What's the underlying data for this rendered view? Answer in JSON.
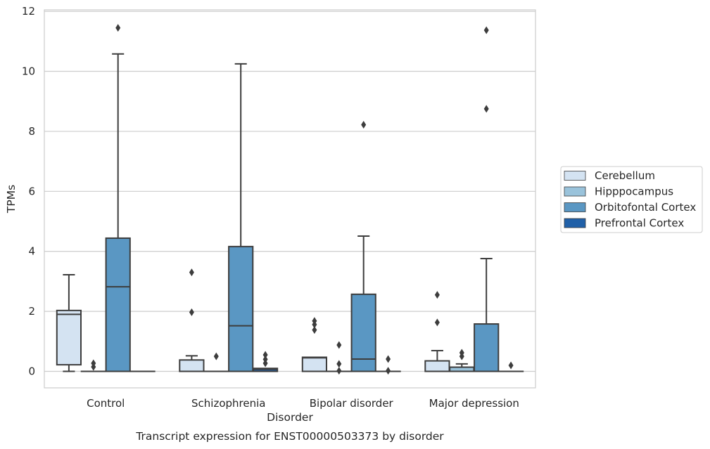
{
  "chart_data": {
    "type": "boxplot",
    "title": "",
    "caption": "Transcript expression for ENST00000503373 by disorder",
    "xlabel": "Disorder",
    "ylabel": "TPMs",
    "ylim": [
      -0.55,
      12.05
    ],
    "yticks": [
      0,
      2,
      4,
      6,
      8,
      10,
      12
    ],
    "grid": true,
    "legend_position": "right",
    "categories": [
      "Control",
      "Schizophrenia",
      "Bipolar disorder",
      "Major depression"
    ],
    "series": [
      {
        "name": "Cerebellum",
        "color": "#d4e3f2",
        "boxes": [
          {
            "q1": 0.22,
            "median": 1.9,
            "q3": 2.03,
            "whisker_low": 0.0,
            "whisker_high": 3.22,
            "outliers": []
          },
          {
            "q1": 0.0,
            "median": 0.0,
            "q3": 0.38,
            "whisker_low": 0.0,
            "whisker_high": 0.52,
            "outliers": [
              3.3,
              1.97
            ]
          },
          {
            "q1": 0.0,
            "median": 0.45,
            "q3": 0.47,
            "whisker_low": 0.0,
            "whisker_high": 0.47,
            "outliers": [
              1.68,
              1.56,
              1.38
            ]
          },
          {
            "q1": 0.0,
            "median": 0.0,
            "q3": 0.35,
            "whisker_low": 0.0,
            "whisker_high": 0.69,
            "outliers": [
              2.55,
              1.63
            ]
          }
        ]
      },
      {
        "name": "Hipppocampus",
        "color": "#9ac3db",
        "boxes": [
          {
            "q1": 0.0,
            "median": 0.0,
            "q3": 0.0,
            "whisker_low": 0.0,
            "whisker_high": 0.0,
            "outliers": [
              0.27,
              0.15
            ]
          },
          {
            "q1": 0.0,
            "median": 0.0,
            "q3": 0.0,
            "whisker_low": 0.0,
            "whisker_high": 0.0,
            "outliers": [
              0.5
            ]
          },
          {
            "q1": 0.0,
            "median": 0.0,
            "q3": 0.0,
            "whisker_low": 0.0,
            "whisker_high": 0.0,
            "outliers": [
              0.88,
              0.25,
              0.02
            ]
          },
          {
            "q1": 0.0,
            "median": 0.0,
            "q3": 0.14,
            "whisker_low": 0.0,
            "whisker_high": 0.25,
            "outliers": [
              0.62,
              0.5
            ]
          }
        ]
      },
      {
        "name": "Orbitofontal Cortex",
        "color": "#5a97c3",
        "boxes": [
          {
            "q1": 0.0,
            "median": 2.82,
            "q3": 4.44,
            "whisker_low": 0.0,
            "whisker_high": 10.58,
            "outliers": [
              11.45
            ]
          },
          {
            "q1": 0.0,
            "median": 1.52,
            "q3": 4.16,
            "whisker_low": 0.0,
            "whisker_high": 10.25,
            "outliers": []
          },
          {
            "q1": 0.0,
            "median": 0.41,
            "q3": 2.57,
            "whisker_low": 0.0,
            "whisker_high": 4.51,
            "outliers": [
              8.22
            ]
          },
          {
            "q1": 0.0,
            "median": 0.0,
            "q3": 1.58,
            "whisker_low": 0.0,
            "whisker_high": 3.76,
            "outliers": [
              11.37,
              8.75
            ]
          }
        ]
      },
      {
        "name": "Prefrontal Cortex",
        "color": "#2060a8",
        "boxes": [
          {
            "q1": 0.0,
            "median": 0.0,
            "q3": 0.0,
            "whisker_low": 0.0,
            "whisker_high": 0.0,
            "outliers": []
          },
          {
            "q1": 0.0,
            "median": 0.07,
            "q3": 0.1,
            "whisker_low": 0.0,
            "whisker_high": 0.1,
            "outliers": [
              0.55,
              0.4,
              0.27
            ]
          },
          {
            "q1": 0.0,
            "median": 0.0,
            "q3": 0.0,
            "whisker_low": 0.0,
            "whisker_high": 0.0,
            "outliers": [
              0.41,
              0.02
            ]
          },
          {
            "q1": 0.0,
            "median": 0.0,
            "q3": 0.0,
            "whisker_low": 0.0,
            "whisker_high": 0.0,
            "outliers": [
              0.2
            ]
          }
        ]
      }
    ]
  }
}
